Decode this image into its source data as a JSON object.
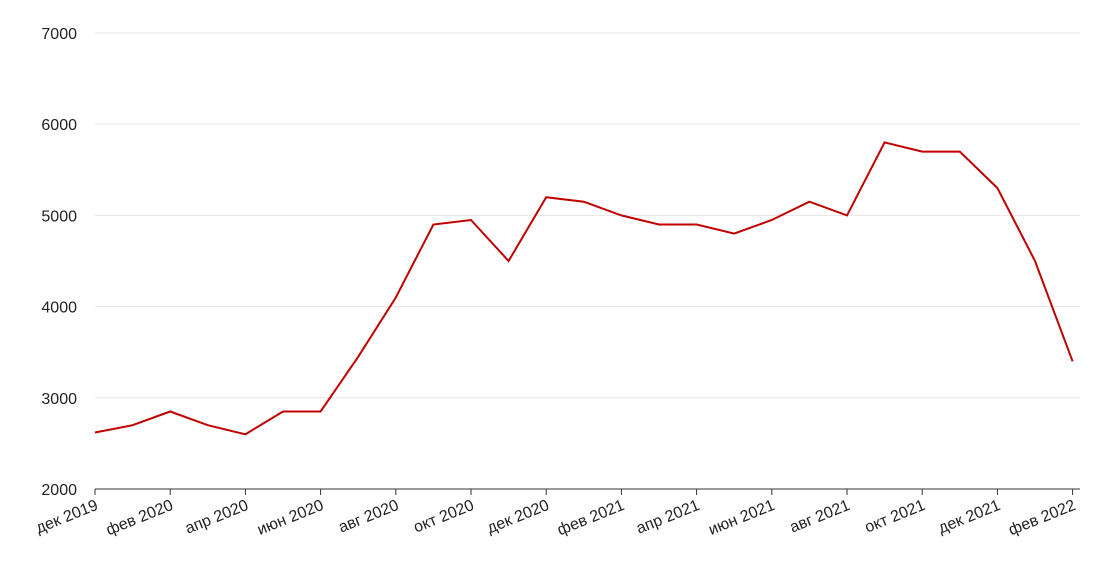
{
  "chart_data": {
    "type": "line",
    "x": [
      "2019-12",
      "2020-01",
      "2020-02",
      "2020-03",
      "2020-04",
      "2020-05",
      "2020-06",
      "2020-07",
      "2020-08",
      "2020-09",
      "2020-10",
      "2020-11",
      "2020-12",
      "2021-01",
      "2021-02",
      "2021-03",
      "2021-04",
      "2021-05",
      "2021-06",
      "2021-07",
      "2021-08",
      "2021-09",
      "2021-10",
      "2021-11",
      "2021-12",
      "2022-01",
      "2022-02"
    ],
    "series": [
      {
        "color": "#c00000",
        "values": [
          2620,
          2700,
          2850,
          2700,
          2600,
          2850,
          2850,
          3450,
          4100,
          4900,
          4950,
          4500,
          5200,
          5150,
          5000,
          4900,
          4900,
          4800,
          4950,
          5150,
          5000,
          5800,
          5700,
          5700,
          5300,
          4500,
          3400
        ]
      }
    ],
    "ylim": [
      2000,
      7000
    ],
    "yticks": [
      2000,
      3000,
      4000,
      5000,
      6000,
      7000
    ],
    "xticks": [
      {
        "value": "2019-12",
        "label": "дек 2019"
      },
      {
        "value": "2020-02",
        "label": "фев 2020"
      },
      {
        "value": "2020-04",
        "label": "апр 2020"
      },
      {
        "value": "2020-06",
        "label": "июн 2020"
      },
      {
        "value": "2020-08",
        "label": "авг 2020"
      },
      {
        "value": "2020-10",
        "label": "окт 2020"
      },
      {
        "value": "2020-12",
        "label": "дек 2020"
      },
      {
        "value": "2021-02",
        "label": "фев 2021"
      },
      {
        "value": "2021-04",
        "label": "апр 2021"
      },
      {
        "value": "2021-06",
        "label": "июн 2021"
      },
      {
        "value": "2021-08",
        "label": "авг 2021"
      },
      {
        "value": "2021-10",
        "label": "окт 2021"
      },
      {
        "value": "2021-12",
        "label": "дек 2021"
      },
      {
        "value": "2022-02",
        "label": "фев 2022"
      }
    ],
    "grid": true
  }
}
